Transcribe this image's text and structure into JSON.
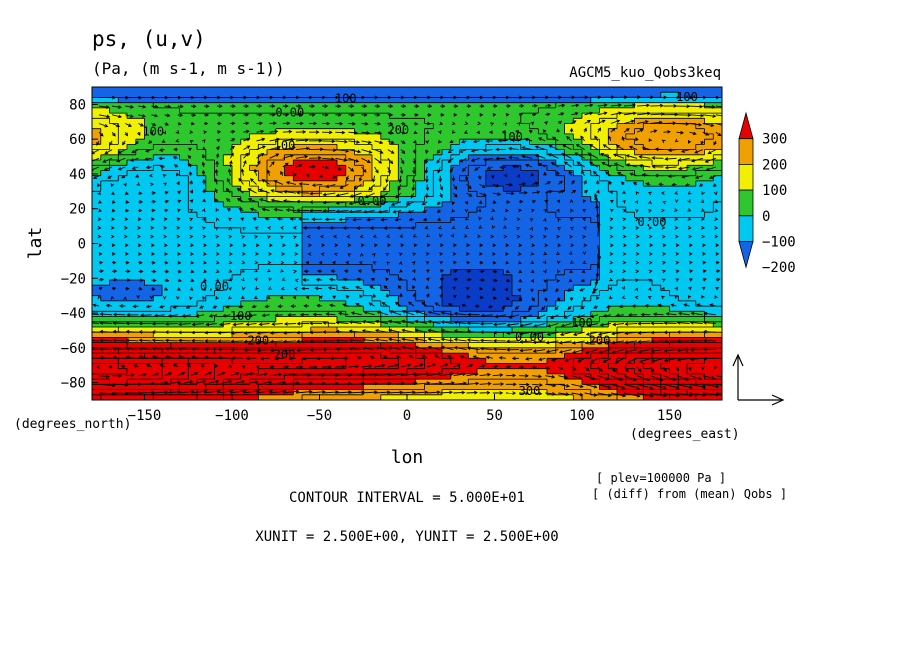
{
  "header": {
    "title": "ps, (u,v)",
    "units": "(Pa, (m s-1, m s-1))",
    "run_name": "AGCM5_kuo_Qobs3keq"
  },
  "footer": {
    "contour_interval": "CONTOUR INTERVAL = 5.000E+01",
    "units_line": "XUNIT = 2.500E+00, YUNIT = 2.500E+00",
    "plev_note": "[ plev=100000 Pa ]",
    "diff_note": "[ (diff) from (mean) Qobs ]"
  },
  "chart_data": {
    "type": "heatmap",
    "title": "ps, (u,v)",
    "subtitle": "(Pa, (m s-1, m s-1))",
    "xlabel": "lon",
    "ylabel": "lat",
    "x_unit_label": "(degrees_east)",
    "y_unit_label": "(degrees_north)",
    "xlim": [
      -180,
      180
    ],
    "ylim": [
      -90,
      90
    ],
    "x_ticks": [
      -150,
      -100,
      -50,
      0,
      50,
      100,
      150
    ],
    "y_ticks": [
      -80,
      -60,
      -40,
      -20,
      0,
      20,
      40,
      60,
      80
    ],
    "contour_interval": 50,
    "colorbar": {
      "levels": [
        -300,
        -200,
        -100,
        0,
        100,
        200,
        300,
        400
      ],
      "tick_labels": [
        "300",
        "200",
        "100",
        "0",
        "−100",
        "−200"
      ],
      "colors": [
        "#1464e6",
        "#00c8f0",
        "#2ec82e",
        "#f0f000",
        "#f0a000",
        "#e60000"
      ]
    },
    "colors": {
      "below_-200": "#1464e6",
      "-200_to_-100": "#1464e6",
      "-100_to_0": "#00c8f0",
      "0_to_100": "#2ec82e",
      "100_to_200": "#f0f000",
      "200_to_300": "#f0a000",
      "above_300": "#e60000",
      "deep_low": "#0a3cc8"
    },
    "field_features": [
      {
        "name": "high",
        "lon": -55,
        "lat": 40,
        "peak": 320
      },
      {
        "name": "low",
        "lon": 60,
        "lat": 40,
        "peak": -260
      },
      {
        "name": "low",
        "lon": 40,
        "lat": -35,
        "peak": -260
      },
      {
        "name": "high",
        "lon": -155,
        "lat": -80,
        "peak": 350
      },
      {
        "name": "high",
        "lon": -30,
        "lat": -65,
        "peak": 330
      },
      {
        "name": "high",
        "lon": 165,
        "lat": -65,
        "peak": 320
      },
      {
        "name": "high",
        "lon": 150,
        "lat": 60,
        "peak": 250
      },
      {
        "name": "low",
        "lon": -140,
        "lat": 40,
        "peak": -140
      },
      {
        "name": "low",
        "lon": -160,
        "lat": -35,
        "peak": -130
      }
    ],
    "contour_labels": [
      {
        "text": "100",
        "lon": -35,
        "lat": 81
      },
      {
        "text": "0.00",
        "lon": -67,
        "lat": 73
      },
      {
        "text": "100",
        "lon": -145,
        "lat": 62
      },
      {
        "text": "100",
        "lon": -70,
        "lat": 54
      },
      {
        "text": "200",
        "lon": -5,
        "lat": 63
      },
      {
        "text": "100",
        "lon": 60,
        "lat": 59
      },
      {
        "text": "100",
        "lon": 160,
        "lat": 82
      },
      {
        "text": "0.00",
        "lon": -20,
        "lat": 22
      },
      {
        "text": "0.00",
        "lon": 140,
        "lat": 10
      },
      {
        "text": "0.00",
        "lon": -110,
        "lat": -27
      },
      {
        "text": "100",
        "lon": -95,
        "lat": -44
      },
      {
        "text": "200",
        "lon": -85,
        "lat": -58
      },
      {
        "text": "200",
        "lon": -70,
        "lat": -66
      },
      {
        "text": "100",
        "lon": 100,
        "lat": -48
      },
      {
        "text": "0.00",
        "lon": 70,
        "lat": -56
      },
      {
        "text": "200",
        "lon": 110,
        "lat": -58
      },
      {
        "text": "300",
        "lon": 70,
        "lat": -87
      }
    ],
    "vector_reference": {
      "xunit": 2.5,
      "yunit": 2.5
    }
  }
}
